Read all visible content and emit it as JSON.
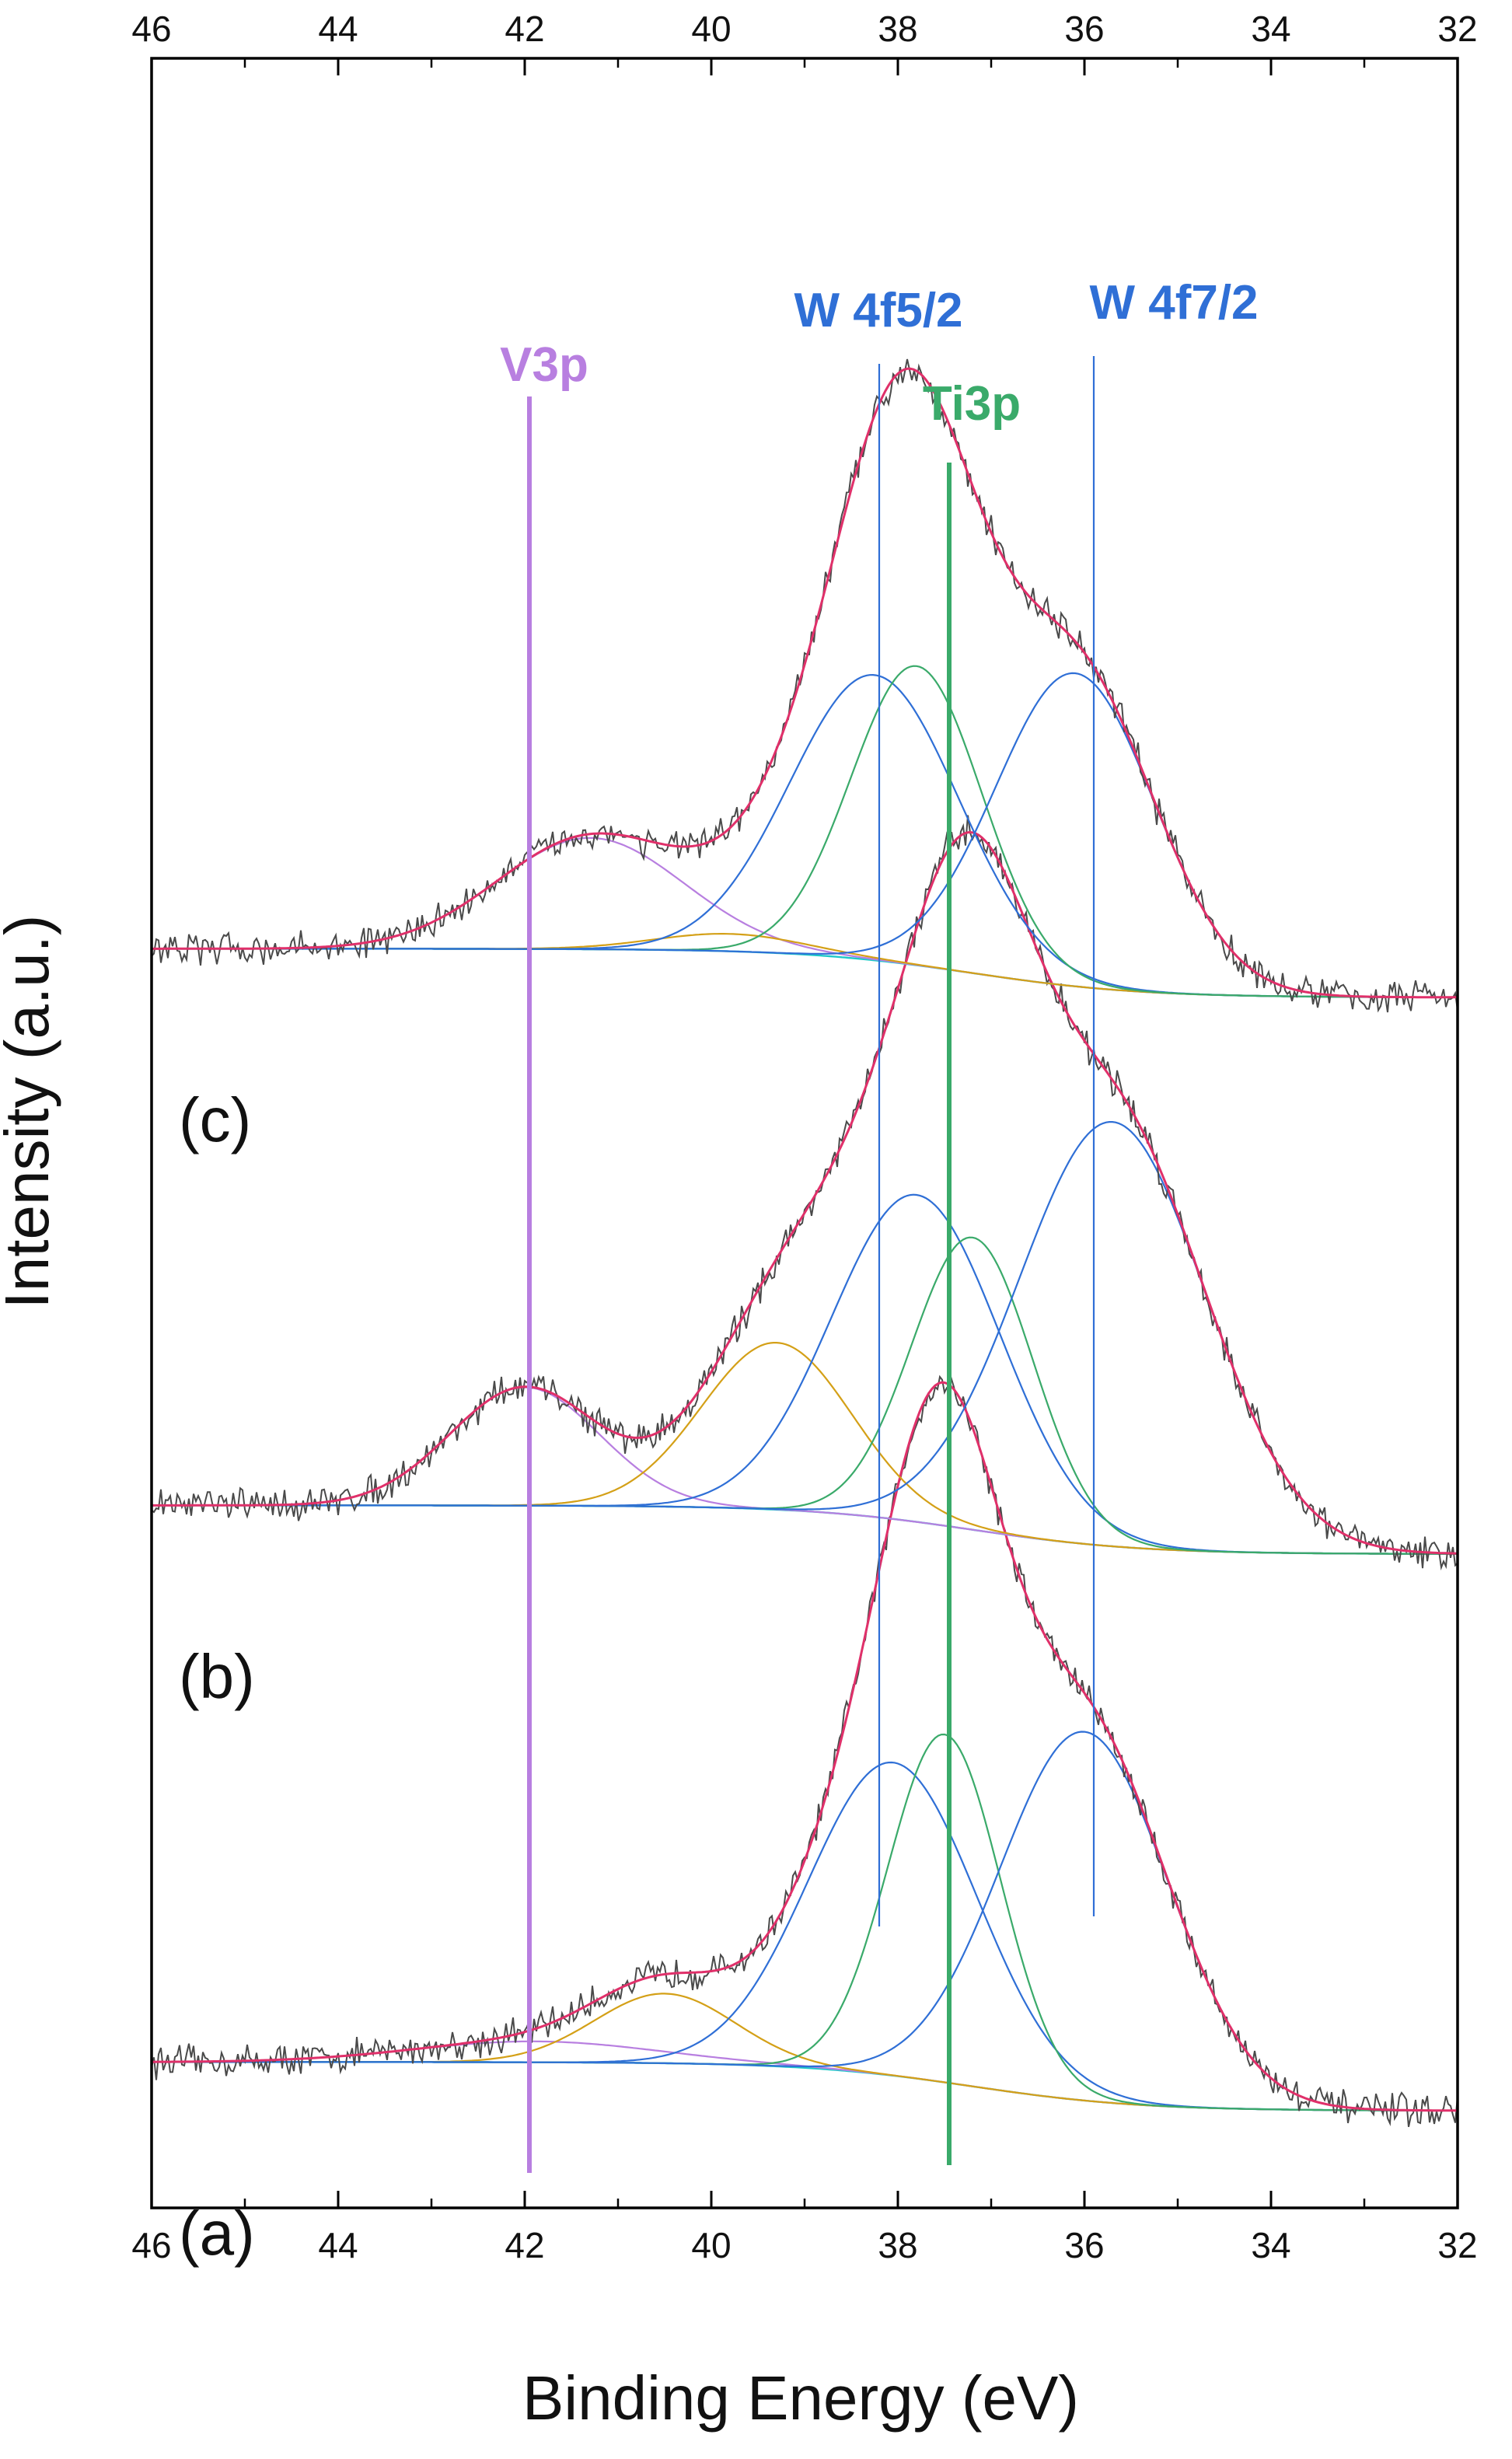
{
  "chart_data": {
    "type": "line",
    "title": "",
    "xlabel": "Binding Energy (eV)",
    "ylabel": "Intensity (a.u.)",
    "xlim": [
      46,
      32
    ],
    "x_reversed": true,
    "x_ticks": [
      46,
      44,
      42,
      40,
      38,
      36,
      34,
      32
    ],
    "x_tick_labels": [
      "46",
      "44",
      "42",
      "40",
      "38",
      "36",
      "34",
      "32"
    ],
    "y_tick_labels": "none",
    "grid": false,
    "colors": {
      "raw": "#4a4a4a",
      "envelope": "#e0306a",
      "background": "#1ec8c8",
      "V3p": "#b87fe0",
      "W4f": "#2f6fd6",
      "Ti3p": "#3aaa6a",
      "satellite": "#d4a017"
    },
    "reference_lines": [
      {
        "name": "V3p",
        "label": "V3p",
        "x": 41.95,
        "color": "#b87fe0"
      },
      {
        "name": "W 4f5/2",
        "label": "W 4f5/2",
        "x": 38.2,
        "color": "#2f6fd6"
      },
      {
        "name": "Ti3p",
        "label": "Ti3p",
        "x": 37.45,
        "color": "#3aaa6a"
      },
      {
        "name": "W 4f7/2",
        "label": "W 4f7/2",
        "x": 35.9,
        "color": "#2f6fd6"
      }
    ],
    "spectra": [
      {
        "label": "(a)",
        "offset": 0,
        "baseline_high": 0.07,
        "baseline_low": 0.0,
        "components": [
          {
            "name": "V3p",
            "center": 41.9,
            "amp": 0.03,
            "sigma": 1.3
          },
          {
            "name": "satellite",
            "center": 40.5,
            "amp": 0.1,
            "sigma": 0.75
          },
          {
            "name": "W 4f5/2",
            "center": 38.05,
            "amp": 0.45,
            "sigma": 0.9
          },
          {
            "name": "Ti3p",
            "center": 37.5,
            "amp": 0.5,
            "sigma": 0.6
          },
          {
            "name": "W 4f7/2",
            "center": 36.0,
            "amp": 0.53,
            "sigma": 0.9
          }
        ]
      },
      {
        "label": "(b)",
        "offset": 0.8,
        "baseline_high": 0.07,
        "baseline_low": 0.0,
        "components": [
          {
            "name": "V3p",
            "center": 42.0,
            "amp": 0.17,
            "sigma": 0.8
          },
          {
            "name": "satellite",
            "center": 39.3,
            "amp": 0.24,
            "sigma": 0.8
          },
          {
            "name": "W 4f5/2",
            "center": 37.8,
            "amp": 0.47,
            "sigma": 0.9
          },
          {
            "name": "Ti3p",
            "center": 37.2,
            "amp": 0.42,
            "sigma": 0.65
          },
          {
            "name": "W 4f7/2",
            "center": 35.7,
            "amp": 0.61,
            "sigma": 1.0
          }
        ]
      },
      {
        "label": "(c)",
        "offset": 1.6,
        "baseline_high": 0.07,
        "baseline_low": 0.0,
        "components": [
          {
            "name": "V3p",
            "center": 41.3,
            "amp": 0.16,
            "sigma": 1.0
          },
          {
            "name": "satellite",
            "center": 39.8,
            "amp": 0.025,
            "sigma": 0.8
          },
          {
            "name": "W 4f5/2",
            "center": 38.25,
            "amp": 0.41,
            "sigma": 0.9
          },
          {
            "name": "Ti3p",
            "center": 37.8,
            "amp": 0.43,
            "sigma": 0.7
          },
          {
            "name": "W 4f7/2",
            "center": 36.1,
            "amp": 0.45,
            "sigma": 0.85
          }
        ]
      }
    ]
  }
}
